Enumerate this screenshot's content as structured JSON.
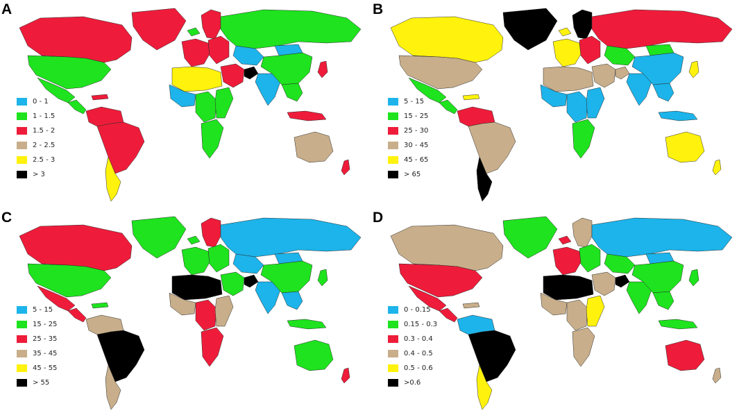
{
  "colors": {
    "blue": "#1cb4ea",
    "green": "#1ee31e",
    "red": "#ee1c3a",
    "tan": "#c8ae8a",
    "yellow": "#fff20c",
    "black": "#000000"
  },
  "panels": [
    {
      "letter": "A",
      "legend": [
        {
          "label": "0 - 1",
          "color": "blue"
        },
        {
          "label": "1 - 1.5",
          "color": "green"
        },
        {
          "label": "1.5 - 2",
          "color": "red"
        },
        {
          "label": "2 - 2.5",
          "color": "tan"
        },
        {
          "label": "2.5 - 3",
          "color": "yellow"
        },
        {
          "label": "> 3",
          "color": "black"
        }
      ],
      "regions": {
        "greenland": "red",
        "canada": "red",
        "usa": "green",
        "mexico": "green",
        "central_america": "green",
        "caribbean": "red",
        "south_america_north": "red",
        "brazil": "red",
        "south_america_south": "yellow",
        "iceland": "green",
        "scandinavia": "red",
        "western_europe": "red",
        "eastern_europe": "red",
        "russia": "green",
        "central_asia": "blue",
        "middle_east": "red",
        "afghanistan": "black",
        "india": "blue",
        "china": "green",
        "mongolia": "blue",
        "southeast_asia": "green",
        "japan": "red",
        "indonesia": "red",
        "north_africa": "yellow",
        "west_africa": "blue",
        "central_africa": "green",
        "east_africa": "green",
        "southern_africa": "green",
        "australia": "tan",
        "new_zealand": "red"
      }
    },
    {
      "letter": "B",
      "legend": [
        {
          "label": "5 - 15",
          "color": "blue"
        },
        {
          "label": "15 - 25",
          "color": "green"
        },
        {
          "label": "25 - 30",
          "color": "red"
        },
        {
          "label": "30 - 45",
          "color": "tan"
        },
        {
          "label": "45 - 65",
          "color": "yellow"
        },
        {
          "label": "> 65",
          "color": "black"
        }
      ],
      "regions": {
        "greenland": "black",
        "canada": "yellow",
        "usa": "tan",
        "mexico": "green",
        "central_america": "green",
        "caribbean": "yellow",
        "south_america_north": "red",
        "brazil": "tan",
        "south_america_south": "black",
        "iceland": "yellow",
        "scandinavia": "black",
        "western_europe": "yellow",
        "eastern_europe": "red",
        "russia": "red",
        "central_asia": "green",
        "middle_east": "tan",
        "afghanistan": "tan",
        "india": "blue",
        "china": "blue",
        "mongolia": "green",
        "southeast_asia": "blue",
        "japan": "yellow",
        "indonesia": "blue",
        "north_africa": "tan",
        "west_africa": "blue",
        "central_africa": "blue",
        "east_africa": "blue",
        "southern_africa": "green",
        "australia": "yellow",
        "new_zealand": "yellow"
      }
    },
    {
      "letter": "C",
      "legend": [
        {
          "label": "5 - 15",
          "color": "blue"
        },
        {
          "label": "15 - 25",
          "color": "green"
        },
        {
          "label": "25 - 35",
          "color": "red"
        },
        {
          "label": "35 - 45",
          "color": "tan"
        },
        {
          "label": "45 - 55",
          "color": "yellow"
        },
        {
          "label": "> 55",
          "color": "black"
        }
      ],
      "regions": {
        "greenland": "green",
        "canada": "red",
        "usa": "green",
        "mexico": "red",
        "central_america": "red",
        "caribbean": "green",
        "south_america_north": "tan",
        "brazil": "black",
        "south_america_south": "tan",
        "iceland": "green",
        "scandinavia": "red",
        "western_europe": "green",
        "eastern_europe": "green",
        "russia": "blue",
        "central_asia": "blue",
        "middle_east": "green",
        "afghanistan": "black",
        "india": "blue",
        "china": "green",
        "mongolia": "blue",
        "southeast_asia": "blue",
        "japan": "green",
        "indonesia": "green",
        "north_africa": "black",
        "west_africa": "tan",
        "central_africa": "red",
        "east_africa": "tan",
        "southern_africa": "red",
        "australia": "green",
        "new_zealand": "red"
      }
    },
    {
      "letter": "D",
      "legend": [
        {
          "label": "0 - 0.15",
          "color": "blue"
        },
        {
          "label": "0.15 - 0.3",
          "color": "green"
        },
        {
          "label": "0.3 - 0.4",
          "color": "red"
        },
        {
          "label": "0.4 - 0.5",
          "color": "tan"
        },
        {
          "label": "0.5 - 0.6",
          "color": "yellow"
        },
        {
          "label": ">0.6",
          "color": "black"
        }
      ],
      "regions": {
        "greenland": "green",
        "canada": "tan",
        "usa": "red",
        "mexico": "red",
        "central_america": "red",
        "caribbean": "tan",
        "south_america_north": "blue",
        "brazil": "black",
        "south_america_south": "yellow",
        "iceland": "red",
        "scandinavia": "tan",
        "western_europe": "red",
        "eastern_europe": "green",
        "russia": "blue",
        "central_asia": "green",
        "middle_east": "tan",
        "afghanistan": "black",
        "india": "green",
        "china": "green",
        "mongolia": "blue",
        "southeast_asia": "green",
        "japan": "green",
        "indonesia": "green",
        "north_africa": "black",
        "west_africa": "tan",
        "central_africa": "tan",
        "east_africa": "yellow",
        "southern_africa": "tan",
        "australia": "red",
        "new_zealand": "tan"
      }
    }
  ]
}
